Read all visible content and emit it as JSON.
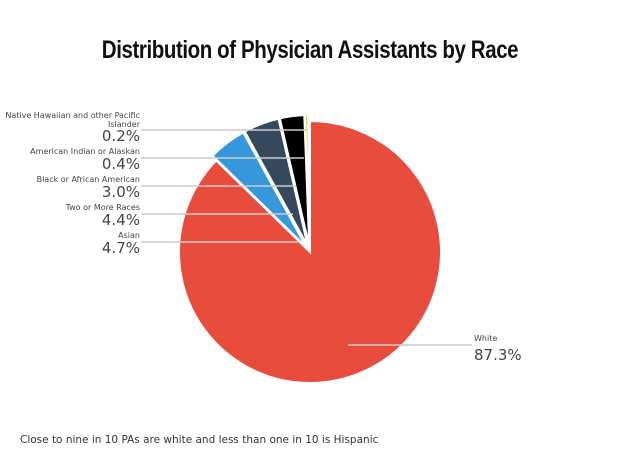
{
  "chart_data": {
    "type": "pie",
    "title": "Distribution of Physician Assistants by Race",
    "slices": [
      {
        "label": "White",
        "value": 87.3,
        "display": "87.3%",
        "color": "#e84c3d"
      },
      {
        "label": "Asian",
        "value": 4.7,
        "display": "4.7%",
        "color": "#3498db"
      },
      {
        "label": "Two or More Races",
        "value": 4.4,
        "display": "4.4%",
        "color": "#34495e"
      },
      {
        "label": "Black or African American",
        "value": 3.0,
        "display": "3.0%",
        "color": "#000000"
      },
      {
        "label": "American Indian or Alaskan",
        "value": 0.4,
        "display": "0.4%",
        "color": "#f1c40f"
      },
      {
        "label": "Native Hawaiian and other Pacific Islander",
        "value": 0.2,
        "display": "0.2%",
        "color": "#9b59b6"
      }
    ],
    "legend": "callout labels"
  },
  "footnote": "Close to nine in 10 PAs are white and less than one in 10 is Hispanic"
}
